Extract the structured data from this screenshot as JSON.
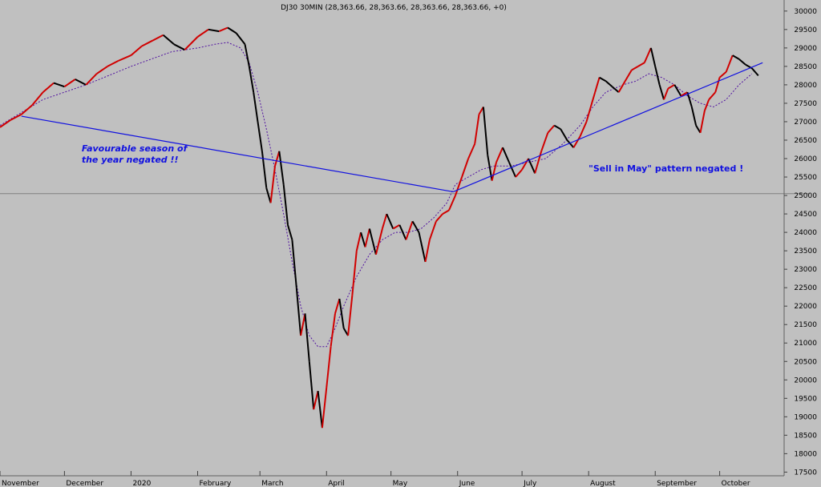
{
  "chart_data": {
    "type": "line",
    "title": "DJ30 30MIN (28,363.66, 28,363.66, 28,363.66, 28,363.66, +0)",
    "xlabel": "",
    "ylabel": "",
    "ylim": [
      17400,
      30300
    ],
    "yticks": [
      17500,
      18000,
      18500,
      19000,
      19500,
      20000,
      20500,
      21000,
      21500,
      22000,
      22500,
      23000,
      23500,
      24000,
      24500,
      25000,
      25500,
      26000,
      26500,
      27000,
      27500,
      28000,
      28500,
      29000,
      29500,
      30000
    ],
    "month_labels": [
      "November",
      "December",
      "2020",
      "February",
      "March",
      "April",
      "May",
      "June",
      "July",
      "August",
      "September",
      "October"
    ],
    "month_starts": [
      0,
      30,
      61,
      92,
      121,
      152,
      182,
      213,
      243,
      274,
      305,
      335
    ],
    "xmax": 365,
    "horizontal_line": 25050,
    "series": [
      {
        "values": [
          [
            0,
            26850
          ],
          [
            5,
            27050
          ],
          [
            10,
            27200
          ],
          [
            15,
            27450
          ],
          [
            20,
            27800
          ],
          [
            25,
            28050
          ],
          [
            30,
            27950
          ],
          [
            35,
            28150
          ],
          [
            40,
            28000
          ],
          [
            45,
            28300
          ],
          [
            50,
            28500
          ],
          [
            55,
            28650
          ],
          [
            61,
            28800
          ],
          [
            66,
            29050
          ],
          [
            71,
            29200
          ],
          [
            76,
            29350
          ],
          [
            81,
            29100
          ],
          [
            86,
            28950
          ],
          [
            92,
            29300
          ],
          [
            97,
            29500
          ],
          [
            102,
            29450
          ],
          [
            106,
            29550
          ],
          [
            110,
            29400
          ],
          [
            114,
            29100
          ],
          [
            116,
            28500
          ],
          [
            118,
            27800
          ],
          [
            120,
            27000
          ],
          [
            122,
            26200
          ],
          [
            124,
            25200
          ],
          [
            126,
            24800
          ],
          [
            128,
            25800
          ],
          [
            130,
            26200
          ],
          [
            132,
            25300
          ],
          [
            134,
            24200
          ],
          [
            136,
            23800
          ],
          [
            138,
            22500
          ],
          [
            140,
            21200
          ],
          [
            142,
            21800
          ],
          [
            144,
            20500
          ],
          [
            146,
            19200
          ],
          [
            148,
            19700
          ],
          [
            150,
            18700
          ],
          [
            152,
            19800
          ],
          [
            154,
            20900
          ],
          [
            156,
            21800
          ],
          [
            158,
            22200
          ],
          [
            160,
            21400
          ],
          [
            162,
            21200
          ],
          [
            164,
            22300
          ],
          [
            166,
            23500
          ],
          [
            168,
            24000
          ],
          [
            170,
            23600
          ],
          [
            172,
            24100
          ],
          [
            175,
            23400
          ],
          [
            178,
            24100
          ],
          [
            180,
            24500
          ],
          [
            183,
            24100
          ],
          [
            186,
            24200
          ],
          [
            189,
            23800
          ],
          [
            192,
            24300
          ],
          [
            195,
            24000
          ],
          [
            198,
            23200
          ],
          [
            200,
            23800
          ],
          [
            203,
            24300
          ],
          [
            206,
            24500
          ],
          [
            209,
            24600
          ],
          [
            212,
            25000
          ],
          [
            215,
            25500
          ],
          [
            218,
            26000
          ],
          [
            221,
            26400
          ],
          [
            223,
            27200
          ],
          [
            225,
            27400
          ],
          [
            227,
            26100
          ],
          [
            229,
            25400
          ],
          [
            231,
            25900
          ],
          [
            234,
            26300
          ],
          [
            237,
            25900
          ],
          [
            240,
            25500
          ],
          [
            243,
            25700
          ],
          [
            246,
            26000
          ],
          [
            249,
            25600
          ],
          [
            252,
            26200
          ],
          [
            255,
            26700
          ],
          [
            258,
            26900
          ],
          [
            261,
            26800
          ],
          [
            264,
            26500
          ],
          [
            267,
            26300
          ],
          [
            270,
            26600
          ],
          [
            273,
            27000
          ],
          [
            275,
            27400
          ],
          [
            277,
            27800
          ],
          [
            279,
            28200
          ],
          [
            282,
            28100
          ],
          [
            285,
            27950
          ],
          [
            288,
            27800
          ],
          [
            291,
            28100
          ],
          [
            294,
            28400
          ],
          [
            297,
            28500
          ],
          [
            300,
            28600
          ],
          [
            303,
            29000
          ],
          [
            305,
            28500
          ],
          [
            307,
            28000
          ],
          [
            309,
            27600
          ],
          [
            311,
            27900
          ],
          [
            314,
            28000
          ],
          [
            317,
            27700
          ],
          [
            320,
            27800
          ],
          [
            322,
            27400
          ],
          [
            324,
            26900
          ],
          [
            326,
            26700
          ],
          [
            328,
            27300
          ],
          [
            330,
            27600
          ],
          [
            333,
            27800
          ],
          [
            335,
            28200
          ],
          [
            338,
            28350
          ],
          [
            341,
            28800
          ],
          [
            344,
            28700
          ],
          [
            347,
            28550
          ],
          [
            350,
            28450
          ],
          [
            353,
            28250
          ]
        ],
        "color": "#000000"
      },
      {
        "values": [
          [
            0,
            26900
          ],
          [
            20,
            27600
          ],
          [
            40,
            28000
          ],
          [
            61,
            28500
          ],
          [
            80,
            28900
          ],
          [
            92,
            29000
          ],
          [
            100,
            29100
          ],
          [
            106,
            29150
          ],
          [
            112,
            29000
          ],
          [
            116,
            28600
          ],
          [
            120,
            27800
          ],
          [
            124,
            26800
          ],
          [
            128,
            25700
          ],
          [
            132,
            24500
          ],
          [
            136,
            23200
          ],
          [
            140,
            22000
          ],
          [
            144,
            21200
          ],
          [
            148,
            20900
          ],
          [
            152,
            20900
          ],
          [
            156,
            21400
          ],
          [
            160,
            22000
          ],
          [
            166,
            22800
          ],
          [
            172,
            23400
          ],
          [
            178,
            23800
          ],
          [
            184,
            24000
          ],
          [
            190,
            24000
          ],
          [
            196,
            24100
          ],
          [
            202,
            24400
          ],
          [
            208,
            24800
          ],
          [
            212,
            25300
          ],
          [
            218,
            25500
          ],
          [
            224,
            25700
          ],
          [
            230,
            25800
          ],
          [
            238,
            25800
          ],
          [
            246,
            25900
          ],
          [
            254,
            26000
          ],
          [
            262,
            26400
          ],
          [
            270,
            26900
          ],
          [
            276,
            27400
          ],
          [
            282,
            27800
          ],
          [
            290,
            28000
          ],
          [
            296,
            28100
          ],
          [
            302,
            28300
          ],
          [
            308,
            28200
          ],
          [
            314,
            28000
          ],
          [
            320,
            27700
          ],
          [
            326,
            27500
          ],
          [
            332,
            27400
          ],
          [
            338,
            27600
          ],
          [
            344,
            28000
          ],
          [
            350,
            28300
          ]
        ],
        "color": "#5010a0",
        "style": "dotted"
      }
    ],
    "trendlines": [
      {
        "from": [
          10,
          27150
        ],
        "to": [
          211,
          25100
        ],
        "color": "#1010e0"
      },
      {
        "from": [
          211,
          25100
        ],
        "to": [
          355,
          28600
        ],
        "color": "#1010e0"
      }
    ],
    "annotations": [
      {
        "lines": [
          "Favourable season of",
          "the year negated !!"
        ],
        "x": 38,
        "y": 26200,
        "style": "italic"
      },
      {
        "lines": [
          "\"Sell in May\" pattern negated !"
        ],
        "x": 274,
        "y": 25650,
        "style": "normal"
      }
    ]
  }
}
